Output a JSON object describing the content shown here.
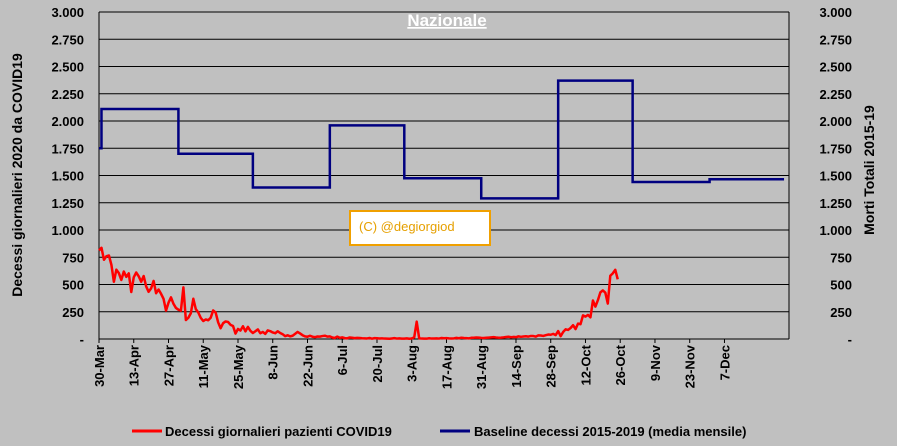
{
  "chart_data": {
    "type": "line",
    "title": "Nazionale",
    "ylabel_left": "Decessi giornalieri 2020 da COVID19",
    "ylabel_right": "Morti Totali 2015-19",
    "ylim": [
      0,
      3000
    ],
    "y_ticks": [
      "-",
      "250",
      "500",
      "750",
      "1.000",
      "1.250",
      "1.500",
      "1.750",
      "2.000",
      "2.250",
      "2.500",
      "2.750",
      "3.000"
    ],
    "x_ticks": [
      "30-Mar",
      "13-Apr",
      "27-Apr",
      "11-May",
      "25-May",
      "8-Jun",
      "22-Jun",
      "6-Jul",
      "20-Jul",
      "3-Aug",
      "17-Aug",
      "31-Aug",
      "14-Sep",
      "28-Sep",
      "12-Oct",
      "26-Oct",
      "9-Nov",
      "23-Nov",
      "7-Dec"
    ],
    "grid": true,
    "legend_position": "bottom",
    "watermark": "(C) @degiorgiod",
    "series": [
      {
        "name": "Decessi giornalieri pazienti COVID19",
        "color": "#ff0000",
        "axis": "left",
        "values": [
          812,
          837,
          727,
          760,
          766,
          681,
          525,
          636,
          604,
          542,
          619,
          570,
          602,
          431,
          566,
          610,
          575,
          525,
          578,
          482,
          433,
          464,
          533,
          420,
          454,
          415,
          369,
          260,
          333,
          382,
          323,
          285,
          269,
          260,
          474,
          174,
          195,
          236,
          369,
          274,
          243,
          194,
          165,
          179,
          172,
          195,
          262,
          242,
          153,
          99,
          145,
          161,
          156,
          130,
          119,
          50,
          92,
          78,
          117,
          70,
          111,
          75,
          55,
          71,
          88,
          53,
          65,
          47,
          79,
          72,
          60,
          53,
          71,
          55,
          44,
          26,
          34,
          24,
          30,
          47,
          65,
          51,
          35,
          24,
          21,
          30,
          21,
          17,
          23,
          22,
          27,
          30,
          22,
          24,
          14,
          9,
          22,
          11,
          15,
          8,
          6,
          14,
          12,
          8,
          10,
          9,
          7,
          6,
          5,
          9,
          3,
          8,
          7,
          5,
          6,
          4,
          3,
          2,
          5,
          8,
          4,
          6,
          3,
          3,
          6,
          2,
          5,
          15,
          159,
          6,
          4,
          3,
          3,
          7,
          4,
          5,
          6,
          4,
          9,
          7,
          8,
          6,
          5,
          6,
          10,
          7,
          12,
          9,
          8,
          6,
          11,
          12,
          14,
          13,
          10,
          9,
          11,
          13,
          15,
          17,
          14,
          12,
          13,
          15,
          18,
          21,
          16,
          19,
          17,
          24,
          20,
          23,
          25,
          22,
          28,
          27,
          22,
          33,
          32,
          28,
          35,
          41,
          39,
          47,
          36,
          73,
          26,
          64,
          89,
          83,
          101,
          127,
          91,
          141,
          136,
          217,
          205,
          221,
          199,
          353,
          297,
          356,
          428,
          446,
          425,
          325,
          580,
          602,
          635,
          548
        ]
      },
      {
        "name": "Baseline decessi 2015-2019 (media mensile)",
        "color": "#000080",
        "axis": "right",
        "steps": [
          {
            "from_day": 0,
            "to_day": 1,
            "value": 1750
          },
          {
            "from_day": 1,
            "to_day": 32,
            "value": 2110
          },
          {
            "from_day": 32,
            "to_day": 62,
            "value": 1700
          },
          {
            "from_day": 62,
            "to_day": 93,
            "value": 1390
          },
          {
            "from_day": 93,
            "to_day": 123,
            "value": 1960
          },
          {
            "from_day": 123,
            "to_day": 154,
            "value": 1475
          },
          {
            "from_day": 154,
            "to_day": 185,
            "value": 1290
          },
          {
            "from_day": 185,
            "to_day": 215,
            "value": 2370
          },
          {
            "from_day": 215,
            "to_day": 246,
            "value": 1440
          },
          {
            "from_day": 246,
            "to_day": 276,
            "value": 1465
          }
        ]
      }
    ]
  }
}
